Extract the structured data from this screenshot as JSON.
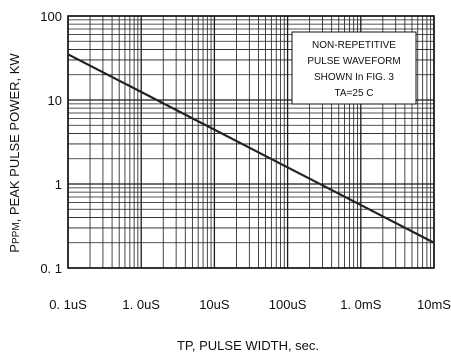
{
  "chart_data": {
    "type": "line",
    "x_scale": "log",
    "y_scale": "log",
    "xlim": [
      "0.1uS",
      "10mS"
    ],
    "ylim": [
      0.1,
      100
    ],
    "x_tick_labels": [
      "0. 1uS",
      "1. 0uS",
      "10uS",
      "100uS",
      "1. 0mS",
      "10mS"
    ],
    "y_tick_labels": [
      "100",
      "10",
      "1",
      "0. 1"
    ],
    "xlabel": "TP, PULSE  WIDTH, sec.",
    "ylabel_prefix": "P",
    "ylabel_sub": "PPM",
    "ylabel_rest": ", PEAK  PULSE  POWER, KW",
    "annotation_lines": [
      "NON-REPETITIVE",
      "PULSE WAVEFORM",
      "SHOWN In FIG. 3",
      "TA=25 C"
    ],
    "grid": true,
    "series": [
      {
        "x": [
          "0.1uS",
          "10mS"
        ],
        "y": [
          35,
          0.2
        ]
      }
    ],
    "colors": {
      "line": "#222222",
      "grid": "#1a1a1a",
      "background": "#ffffff"
    }
  }
}
